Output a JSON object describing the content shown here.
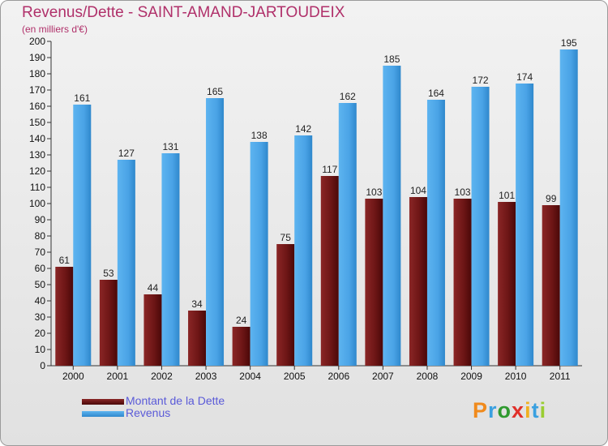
{
  "chart_data": {
    "type": "bar",
    "title": "Revenus/Dette - SAINT-AMAND-JARTOUDEIX",
    "subtitle": "(en milliers d'€)",
    "categories": [
      "2000",
      "2001",
      "2002",
      "2003",
      "2004",
      "2005",
      "2006",
      "2007",
      "2008",
      "2009",
      "2010",
      "2011"
    ],
    "series": [
      {
        "name": "Montant de la Dette",
        "color": "#7a1c1c",
        "values": [
          61,
          53,
          44,
          34,
          24,
          75,
          117,
          103,
          104,
          103,
          101,
          99
        ]
      },
      {
        "name": "Revenus",
        "color": "#4aa3e6",
        "values": [
          161,
          127,
          131,
          165,
          138,
          142,
          162,
          185,
          164,
          172,
          174,
          195
        ]
      }
    ],
    "ylim": [
      0,
      200
    ],
    "ytick_step": 10,
    "grid": false,
    "legend_position": "bottom-left"
  },
  "logo": {
    "letters": [
      "P",
      "r",
      "o",
      "x",
      "i",
      "t",
      "i"
    ],
    "colors": [
      "#f08a1c",
      "#3aa0e0",
      "#2f9a2f",
      "#e0302a",
      "#f0b020",
      "#3aa0e0",
      "#9acd32"
    ]
  }
}
